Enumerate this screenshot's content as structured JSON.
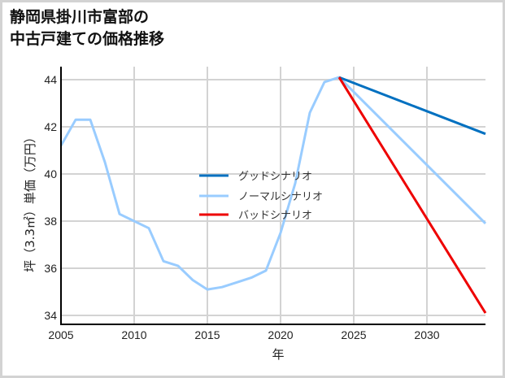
{
  "title": {
    "line1": "静岡県掛川市富部の",
    "line2": "中古戸建ての価格推移"
  },
  "chart_data": {
    "type": "line",
    "title": "静岡県掛川市富部の中古戸建ての価格推移",
    "xlabel": "年",
    "ylabel": "坪（3.3㎡）単価（万円）",
    "xlim": [
      2005,
      2034
    ],
    "ylim": [
      33.7,
      44.5
    ],
    "xticks": [
      2005,
      2010,
      2015,
      2020,
      2025,
      2030
    ],
    "yticks": [
      34,
      36,
      38,
      40,
      42,
      44
    ],
    "grid": true,
    "legend_position": "center",
    "series": [
      {
        "name": "グッドシナリオ",
        "color": "#0070c0",
        "x": [
          2024,
          2034
        ],
        "values": [
          44.1,
          41.7
        ]
      },
      {
        "name": "ノーマルシナリオ",
        "color": "#99ccff",
        "x": [
          2005,
          2006,
          2007,
          2008,
          2009,
          2010,
          2011,
          2012,
          2013,
          2014,
          2015,
          2016,
          2017,
          2018,
          2019,
          2020,
          2021,
          2022,
          2023,
          2024,
          2034
        ],
        "values": [
          41.2,
          42.3,
          42.3,
          40.5,
          38.3,
          38.0,
          37.7,
          36.3,
          36.1,
          35.5,
          35.1,
          35.2,
          35.4,
          35.6,
          35.9,
          37.5,
          39.6,
          42.6,
          43.9,
          44.1,
          37.9
        ]
      },
      {
        "name": "バッドシナリオ",
        "color": "#ee0000",
        "x": [
          2024,
          2034
        ],
        "values": [
          44.1,
          34.1
        ]
      }
    ]
  },
  "legend": {
    "items": [
      {
        "label": "グッドシナリオ",
        "color": "#0070c0"
      },
      {
        "label": "ノーマルシナリオ",
        "color": "#99ccff"
      },
      {
        "label": "バッドシナリオ",
        "color": "#ee0000"
      }
    ]
  }
}
